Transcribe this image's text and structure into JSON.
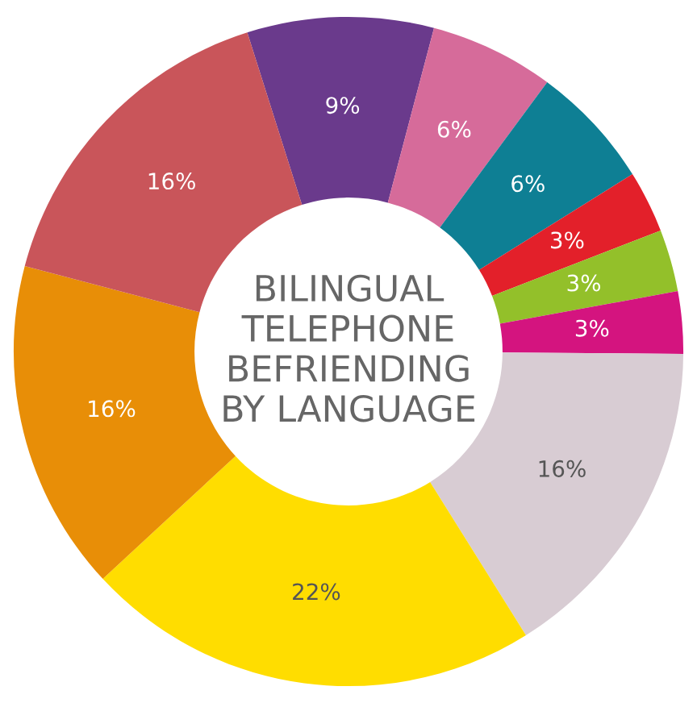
{
  "chart_data": {
    "type": "donut",
    "title": "BILINGUAL\nTELEPHONE\nBEFRIENDING\nBY LANGUAGE",
    "categories": [
      null,
      null,
      null,
      null,
      null,
      null,
      null,
      null,
      null,
      null
    ],
    "values": [
      9,
      6,
      6,
      3,
      3,
      3,
      16,
      22,
      16,
      16
    ],
    "value_labels": [
      "9%",
      "6%",
      "6%",
      "3%",
      "3%",
      "3%",
      "16%",
      "22%",
      "16%",
      "16%"
    ],
    "colors": [
      "#6a3a8c",
      "#d66b9a",
      "#0e7f94",
      "#e3202a",
      "#93c02a",
      "#d4147f",
      "#d8ccd3",
      "#ffdd00",
      "#e88e07",
      "#c9555a"
    ]
  }
}
